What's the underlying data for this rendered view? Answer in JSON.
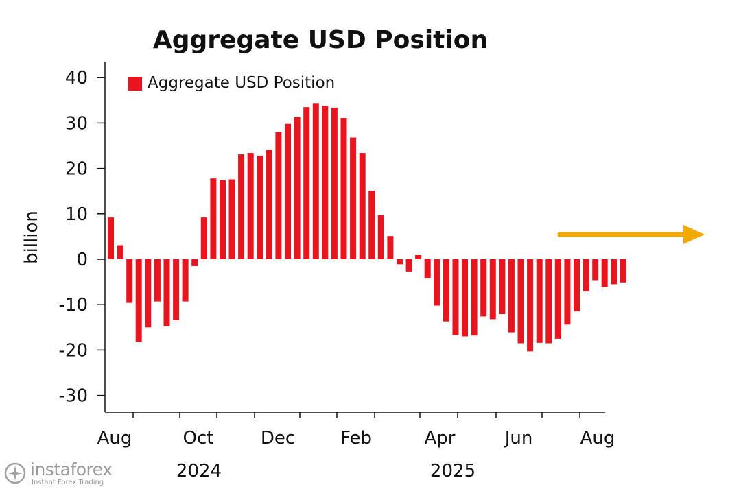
{
  "chart_data": {
    "type": "bar",
    "title": "Aggregate USD Position",
    "ylabel": "billion",
    "xlabel": "",
    "ylim": [
      -33,
      43
    ],
    "yticks": [
      40,
      30,
      20,
      10,
      0,
      -10,
      -20,
      -30
    ],
    "ytick_labels": [
      "40",
      "30",
      "20",
      "10",
      "0",
      "-10",
      "-20",
      "-30"
    ],
    "x_axis": {
      "month_labels": [
        "Aug",
        "Oct",
        "Dec",
        "Feb",
        "Apr",
        "Jun",
        "Aug"
      ],
      "year_labels": [
        "2024",
        "2025"
      ]
    },
    "legend": {
      "position": "top-left",
      "entries": [
        "Aggregate USD Position"
      ]
    },
    "grid": false,
    "annotation": {
      "type": "arrow",
      "direction": "right",
      "color": "#f2a900"
    },
    "bar_color": "#e8141e",
    "series": [
      {
        "name": "Aggregate USD Position",
        "values": [
          9.2,
          3.1,
          -9.6,
          -18.2,
          -15.0,
          -9.3,
          -14.8,
          -13.4,
          -9.3,
          -1.5,
          9.2,
          17.8,
          17.4,
          17.6,
          23.1,
          23.4,
          22.8,
          24.1,
          28.0,
          29.8,
          31.3,
          33.5,
          34.4,
          33.8,
          33.4,
          31.1,
          26.8,
          23.4,
          15.1,
          9.7,
          5.1,
          -1.1,
          -2.7,
          0.9,
          -4.2,
          -10.2,
          -13.7,
          -16.7,
          -17.0,
          -16.8,
          -12.6,
          -13.2,
          -12.1,
          -16.1,
          -18.5,
          -20.3,
          -18.4,
          -18.5,
          -17.5,
          -14.4,
          -11.5,
          -7.1,
          -4.6,
          -6.1,
          -5.5,
          -5.1
        ]
      }
    ]
  },
  "watermark": {
    "brand": "instaforex",
    "tagline": "Instant Forex Trading"
  }
}
